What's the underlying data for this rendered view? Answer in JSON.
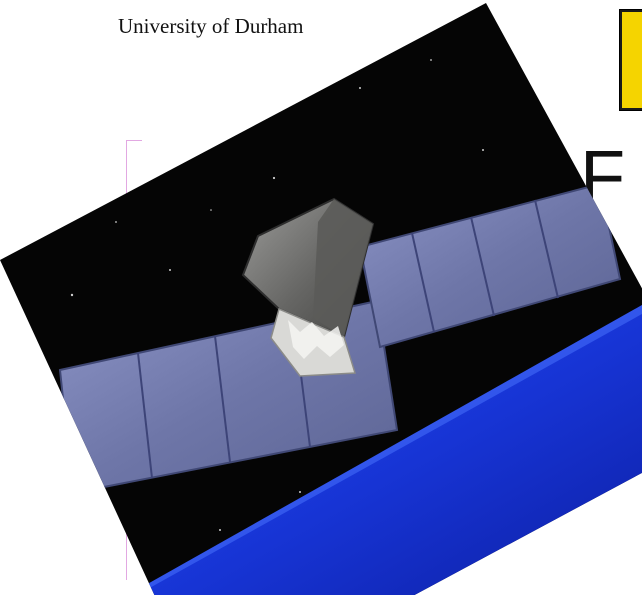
{
  "header": {
    "institution": "University of Durham"
  },
  "title": {
    "visible_text": "F"
  },
  "image": {
    "subject_icon": "satellite-icon",
    "earth_icon": "earth-icon"
  },
  "colors": {
    "space": "#050505",
    "earth": "#1733d6",
    "panel": "#7e86b4",
    "accent": "#f5d400",
    "margin_line": "#e2a8e2"
  }
}
